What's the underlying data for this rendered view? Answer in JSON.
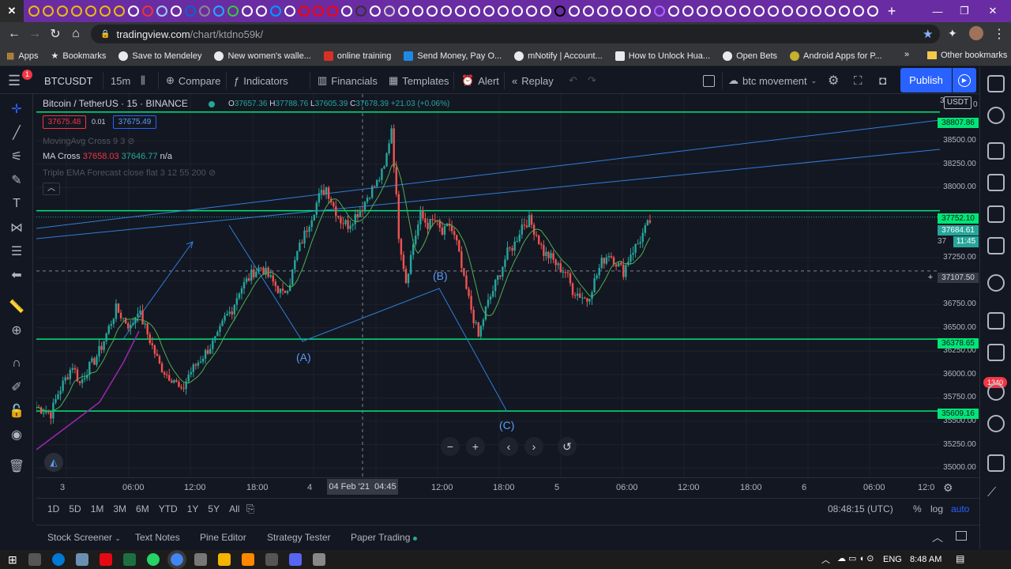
{
  "browser": {
    "url_host": "tradingview.com",
    "url_path": "/chart/ktdno59k/",
    "bookmarks": [
      "Apps",
      "Bookmarks",
      "Save to Mendeley",
      "New women's walle...",
      "online training",
      "Send Money, Pay O...",
      "mNotify | Account...",
      "How to Unlock Hua...",
      "Open Bets",
      "Android Apps for P..."
    ],
    "other_bookmarks": "Other bookmarks",
    "more": "»"
  },
  "toolbar": {
    "symbol": "BTCUSDT",
    "interval": "15m",
    "compare": "Compare",
    "indicators": "Indicators",
    "financials": "Financials",
    "templates": "Templates",
    "alert": "Alert",
    "replay": "Replay",
    "layout_name": "btc movement",
    "publish": "Publish",
    "notif_count": "1"
  },
  "legend": {
    "title": "Bitcoin / TetherUS · 15 · BINANCE",
    "o_label": "O",
    "o": "37657.36",
    "h_label": "H",
    "h": "37788.76",
    "l_label": "L",
    "l": "37605.39",
    "c_label": "C",
    "c": "37678.39",
    "change": "+21.03 (+0.06%)",
    "sell": "37675.48",
    "spread": "0.01",
    "buy": "37675.49",
    "ind1": "MovingAvg Cross 9 3",
    "ind2_name": "MA Cross",
    "ind2_v1": "37658.03",
    "ind2_v2": "37646.77",
    "ind2_v3": "n/a",
    "ind3": "Triple EMA Forecast close flat 3 12 55 200"
  },
  "price_axis": {
    "currency": "USDT",
    "ticks": [
      "38500.00",
      "38250.00",
      "38000.00",
      "37250.00",
      "37000.00",
      "36750.00",
      "36500.00",
      "36250.00",
      "36000.00",
      "35750.00",
      "35500.00",
      "35250.00",
      "35000.00"
    ],
    "labels": {
      "l38807": "38807.86",
      "l37752": "37752.10",
      "l37684": "37684.61",
      "countdown": "11:45",
      "crosshair": "37107.50",
      "l36378": "36378.65",
      "l35609": "35609.16"
    },
    "partial_top": "3",
    "partial_mid": "37",
    "partial_top2": "0"
  },
  "time_axis": {
    "labels": [
      "3",
      "06:00",
      "12:00",
      "18:00",
      "4",
      "12:00",
      "18:00",
      "5",
      "06:00",
      "12:00",
      "18:00",
      "6",
      "06:00",
      "12:0"
    ],
    "crosshair_time": "04 Feb '21  04:45"
  },
  "waves": {
    "a": "(A)",
    "b": "(B)",
    "c": "(C)"
  },
  "range_bar": {
    "ranges": [
      "1D",
      "5D",
      "1M",
      "3M",
      "6M",
      "YTD",
      "1Y",
      "5Y",
      "All"
    ],
    "clock": "08:48:15 (UTC)",
    "pct": "%",
    "log": "log",
    "auto": "auto"
  },
  "panels": [
    "Stock Screener",
    "Text Notes",
    "Pine Editor",
    "Strategy Tester",
    "Paper Trading"
  ],
  "right_badge": "1340",
  "taskbar": {
    "lang": "ENG",
    "time": "8:48 AM"
  },
  "chart_data": {
    "type": "candlestick",
    "symbol": "BTCUSDT",
    "interval": "15m",
    "y_range": [
      34900,
      39000
    ],
    "horizontal_levels": [
      38807.86,
      37752.1,
      36378.65,
      35609.16
    ],
    "last_price": 37684.61,
    "close_path": [
      [
        0,
        35650
      ],
      [
        3,
        35620
      ],
      [
        6,
        35580
      ],
      [
        9,
        35800
      ],
      [
        12,
        35950
      ],
      [
        15,
        36100
      ],
      [
        18,
        35900
      ],
      [
        21,
        36050
      ],
      [
        24,
        36150
      ],
      [
        27,
        36300
      ],
      [
        30,
        36500
      ],
      [
        33,
        36700
      ],
      [
        36,
        36600
      ],
      [
        39,
        36500
      ],
      [
        42,
        36700
      ],
      [
        45,
        36500
      ],
      [
        48,
        36300
      ],
      [
        51,
        36100
      ],
      [
        54,
        36000
      ],
      [
        57,
        35950
      ],
      [
        60,
        35800
      ],
      [
        63,
        36000
      ],
      [
        66,
        36100
      ],
      [
        69,
        36200
      ],
      [
        72,
        36300
      ],
      [
        75,
        36400
      ],
      [
        78,
        36600
      ],
      [
        81,
        36700
      ],
      [
        84,
        36900
      ],
      [
        87,
        37000
      ],
      [
        90,
        37100
      ],
      [
        93,
        37150
      ],
      [
        96,
        37050
      ],
      [
        99,
        36950
      ],
      [
        102,
        36850
      ],
      [
        105,
        37000
      ],
      [
        108,
        37300
      ],
      [
        111,
        37500
      ],
      [
        114,
        37700
      ],
      [
        117,
        37900
      ],
      [
        120,
        38000
      ],
      [
        123,
        37800
      ],
      [
        126,
        37650
      ],
      [
        129,
        37600
      ],
      [
        132,
        37700
      ],
      [
        135,
        37800
      ],
      [
        138,
        37950
      ],
      [
        141,
        38050
      ],
      [
        144,
        38200
      ],
      [
        147,
        38650
      ],
      [
        150,
        37500
      ],
      [
        153,
        37000
      ],
      [
        156,
        37400
      ],
      [
        159,
        37700
      ],
      [
        162,
        37600
      ],
      [
        165,
        37650
      ],
      [
        168,
        37500
      ],
      [
        171,
        37600
      ],
      [
        174,
        37400
      ],
      [
        177,
        37000
      ],
      [
        180,
        36700
      ],
      [
        183,
        36400
      ],
      [
        186,
        36700
      ],
      [
        189,
        36900
      ],
      [
        192,
        37100
      ],
      [
        195,
        37300
      ],
      [
        198,
        37400
      ],
      [
        201,
        37600
      ],
      [
        204,
        37650
      ],
      [
        207,
        37500
      ],
      [
        210,
        37300
      ],
      [
        213,
        37250
      ],
      [
        216,
        37150
      ],
      [
        219,
        37100
      ],
      [
        222,
        36900
      ],
      [
        225,
        36850
      ],
      [
        228,
        36800
      ],
      [
        231,
        37000
      ],
      [
        234,
        37200
      ],
      [
        237,
        37300
      ],
      [
        240,
        37200
      ],
      [
        243,
        37100
      ],
      [
        246,
        37300
      ],
      [
        249,
        37400
      ],
      [
        252,
        37550
      ],
      [
        255,
        37684
      ]
    ]
  }
}
